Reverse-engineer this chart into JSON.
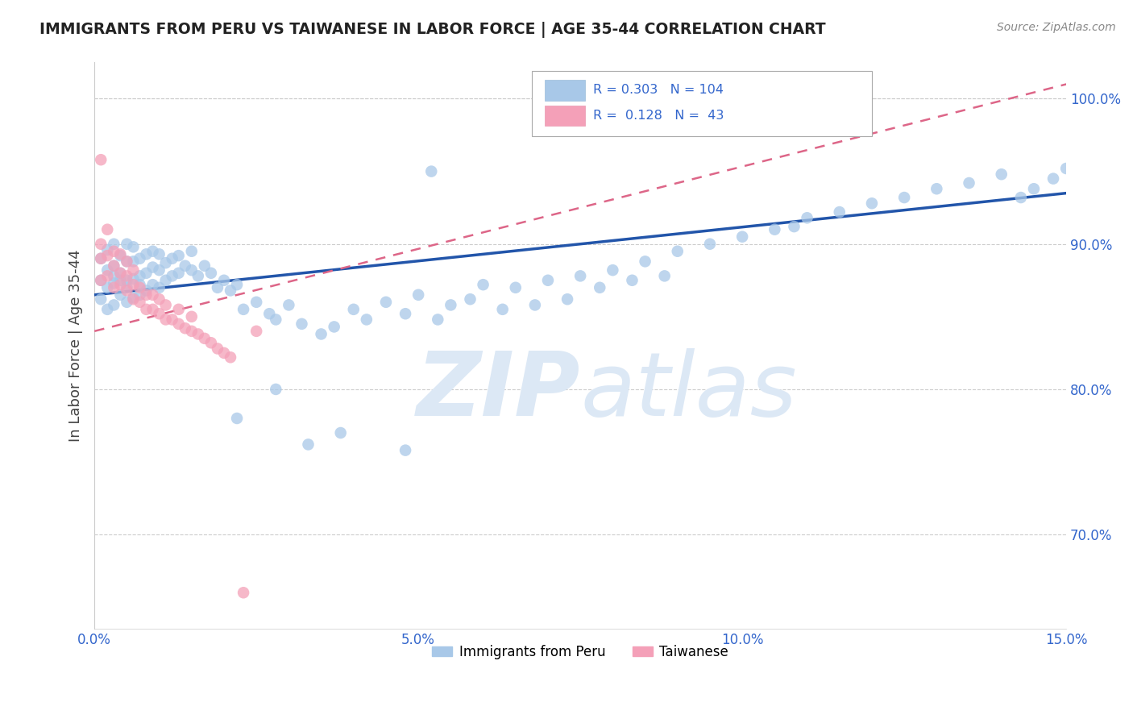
{
  "title": "IMMIGRANTS FROM PERU VS TAIWANESE IN LABOR FORCE | AGE 35-44 CORRELATION CHART",
  "source": "Source: ZipAtlas.com",
  "ylabel": "In Labor Force | Age 35-44",
  "xmin": 0.0,
  "xmax": 0.15,
  "ymin": 0.635,
  "ymax": 1.025,
  "yticks": [
    0.7,
    0.8,
    0.9,
    1.0
  ],
  "ytick_labels": [
    "70.0%",
    "80.0%",
    "90.0%",
    "100.0%"
  ],
  "xticks": [
    0.0,
    0.05,
    0.1,
    0.15
  ],
  "xtick_labels": [
    "0.0%",
    "5.0%",
    "10.0%",
    "15.0%"
  ],
  "legend_items": [
    "Immigrants from Peru",
    "Taiwanese"
  ],
  "blue_color": "#a8c8e8",
  "pink_color": "#f4a0b8",
  "blue_line_color": "#2255aa",
  "pink_line_color": "#dd6688",
  "title_color": "#222222",
  "axis_label_color": "#444444",
  "tick_color": "#3366cc",
  "watermark_color": "#dce8f5",
  "R_peru": 0.303,
  "N_peru": 104,
  "R_taiwan": 0.128,
  "N_taiwan": 43,
  "peru_scatter_x": [
    0.001,
    0.001,
    0.001,
    0.002,
    0.002,
    0.002,
    0.002,
    0.003,
    0.003,
    0.003,
    0.003,
    0.003,
    0.004,
    0.004,
    0.004,
    0.004,
    0.005,
    0.005,
    0.005,
    0.005,
    0.005,
    0.006,
    0.006,
    0.006,
    0.006,
    0.007,
    0.007,
    0.007,
    0.007,
    0.008,
    0.008,
    0.008,
    0.009,
    0.009,
    0.009,
    0.01,
    0.01,
    0.01,
    0.011,
    0.011,
    0.012,
    0.012,
    0.013,
    0.013,
    0.014,
    0.015,
    0.015,
    0.016,
    0.017,
    0.018,
    0.019,
    0.02,
    0.021,
    0.022,
    0.023,
    0.025,
    0.027,
    0.028,
    0.03,
    0.032,
    0.035,
    0.037,
    0.04,
    0.042,
    0.045,
    0.048,
    0.05,
    0.053,
    0.055,
    0.058,
    0.06,
    0.063,
    0.065,
    0.068,
    0.07,
    0.073,
    0.075,
    0.078,
    0.08,
    0.083,
    0.085,
    0.088,
    0.09,
    0.095,
    0.1,
    0.105,
    0.108,
    0.11,
    0.115,
    0.12,
    0.125,
    0.13,
    0.135,
    0.14,
    0.143,
    0.145,
    0.148,
    0.15,
    0.052,
    0.048,
    0.038,
    0.033,
    0.028,
    0.022
  ],
  "peru_scatter_y": [
    0.862,
    0.875,
    0.89,
    0.855,
    0.87,
    0.882,
    0.896,
    0.858,
    0.873,
    0.885,
    0.9,
    0.878,
    0.865,
    0.88,
    0.892,
    0.875,
    0.86,
    0.875,
    0.888,
    0.9,
    0.87,
    0.863,
    0.876,
    0.888,
    0.898,
    0.865,
    0.878,
    0.89,
    0.872,
    0.868,
    0.88,
    0.893,
    0.872,
    0.884,
    0.895,
    0.87,
    0.882,
    0.893,
    0.875,
    0.887,
    0.878,
    0.89,
    0.88,
    0.892,
    0.885,
    0.882,
    0.895,
    0.878,
    0.885,
    0.88,
    0.87,
    0.875,
    0.868,
    0.872,
    0.855,
    0.86,
    0.852,
    0.848,
    0.858,
    0.845,
    0.838,
    0.843,
    0.855,
    0.848,
    0.86,
    0.852,
    0.865,
    0.848,
    0.858,
    0.862,
    0.872,
    0.855,
    0.87,
    0.858,
    0.875,
    0.862,
    0.878,
    0.87,
    0.882,
    0.875,
    0.888,
    0.878,
    0.895,
    0.9,
    0.905,
    0.91,
    0.912,
    0.918,
    0.922,
    0.928,
    0.932,
    0.938,
    0.942,
    0.948,
    0.932,
    0.938,
    0.945,
    0.952,
    0.95,
    0.758,
    0.77,
    0.762,
    0.8,
    0.78
  ],
  "taiwan_scatter_x": [
    0.001,
    0.001,
    0.001,
    0.002,
    0.002,
    0.002,
    0.003,
    0.003,
    0.003,
    0.004,
    0.004,
    0.004,
    0.005,
    0.005,
    0.005,
    0.006,
    0.006,
    0.006,
    0.007,
    0.007,
    0.008,
    0.008,
    0.009,
    0.009,
    0.01,
    0.01,
    0.011,
    0.011,
    0.012,
    0.013,
    0.013,
    0.014,
    0.015,
    0.015,
    0.016,
    0.017,
    0.018,
    0.019,
    0.02,
    0.021,
    0.023,
    0.025,
    0.001
  ],
  "taiwan_scatter_y": [
    0.875,
    0.89,
    0.9,
    0.878,
    0.892,
    0.91,
    0.87,
    0.885,
    0.895,
    0.872,
    0.88,
    0.893,
    0.868,
    0.878,
    0.888,
    0.862,
    0.872,
    0.882,
    0.86,
    0.87,
    0.855,
    0.865,
    0.855,
    0.865,
    0.852,
    0.862,
    0.848,
    0.858,
    0.848,
    0.845,
    0.855,
    0.842,
    0.84,
    0.85,
    0.838,
    0.835,
    0.832,
    0.828,
    0.825,
    0.822,
    0.66,
    0.84,
    0.958
  ],
  "blue_trend_x": [
    0.0,
    0.15
  ],
  "blue_trend_y": [
    0.865,
    0.935
  ],
  "pink_trend_x": [
    0.0,
    0.15
  ],
  "pink_trend_y": [
    0.84,
    1.01
  ]
}
